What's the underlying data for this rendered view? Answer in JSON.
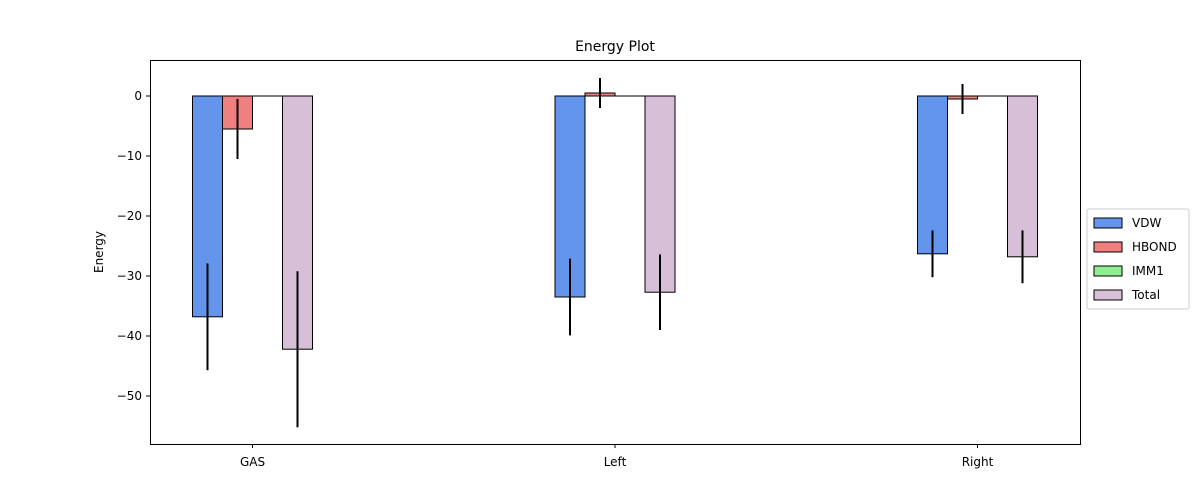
{
  "chart_data": {
    "type": "bar",
    "title": "Energy Plot",
    "xlabel": "",
    "ylabel": "Energy",
    "categories": [
      "GAS",
      "Left",
      "Right"
    ],
    "ylim": [
      -58,
      6
    ],
    "yticks": [
      0,
      -10,
      -20,
      -30,
      -40,
      -50
    ],
    "grid": false,
    "legend_position": "right",
    "series": [
      {
        "name": "VDW",
        "color": "#6495ed",
        "values": [
          -36.8,
          -33.5,
          -26.3
        ],
        "errors": [
          8.9,
          6.4,
          3.9
        ]
      },
      {
        "name": "HBOND",
        "color": "#f08080",
        "values": [
          -5.5,
          0.5,
          -0.5
        ],
        "errors": [
          5.0,
          2.5,
          2.5
        ]
      },
      {
        "name": "IMM1",
        "color": "#90ee90",
        "values": [
          0,
          0,
          0
        ],
        "errors": [
          0,
          0,
          0
        ]
      },
      {
        "name": "Total",
        "color": "#d8bfd8",
        "values": [
          -42.2,
          -32.7,
          -26.8
        ],
        "errors": [
          13.0,
          6.3,
          4.4
        ]
      }
    ]
  }
}
